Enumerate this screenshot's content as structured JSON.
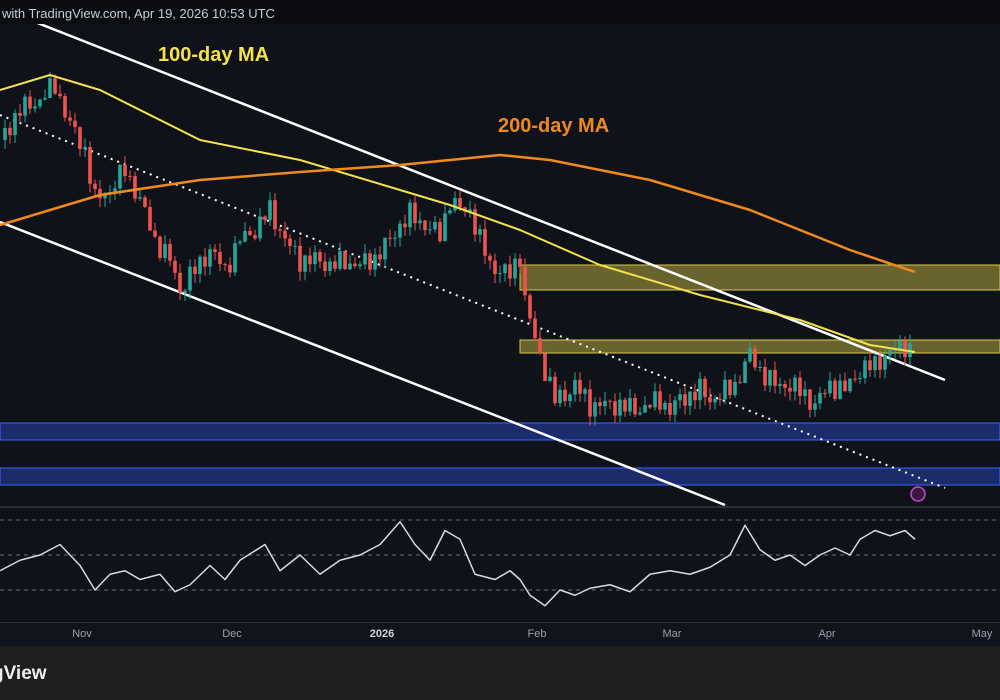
{
  "header": {
    "text": "with TradingView.com, Apr 19, 2026 10:53 UTC"
  },
  "footer": {
    "logo": "gView"
  },
  "chart_data": {
    "type": "candlestick",
    "x_unit": "days since chart start (mid-Oct 2025)",
    "price_unit": "relative",
    "x_ticks": [
      {
        "label": "Nov",
        "day": 16
      },
      {
        "label": "Dec",
        "day": 46
      },
      {
        "label": "2026",
        "day": 76,
        "bold": true
      },
      {
        "label": "Feb",
        "day": 107
      },
      {
        "label": "Mar",
        "day": 134
      },
      {
        "label": "Apr",
        "day": 165
      },
      {
        "label": "May",
        "day": 196
      }
    ],
    "price_path": [
      [
        0,
        76
      ],
      [
        4,
        82
      ],
      [
        8,
        84
      ],
      [
        11,
        87
      ],
      [
        14,
        79
      ],
      [
        17,
        74
      ],
      [
        19,
        64
      ],
      [
        22,
        66
      ],
      [
        25,
        70
      ],
      [
        28,
        64
      ],
      [
        31,
        56
      ],
      [
        34,
        52
      ],
      [
        36,
        46
      ],
      [
        39,
        50
      ],
      [
        42,
        54
      ],
      [
        45,
        50
      ],
      [
        48,
        56
      ],
      [
        51,
        58
      ],
      [
        54,
        62
      ],
      [
        57,
        56
      ],
      [
        60,
        52
      ],
      [
        63,
        52
      ],
      [
        66,
        51
      ],
      [
        69,
        51.6
      ],
      [
        72,
        51
      ],
      [
        75,
        52.4
      ],
      [
        78,
        56
      ],
      [
        80,
        59
      ],
      [
        82,
        61
      ],
      [
        85,
        59
      ],
      [
        88,
        57
      ],
      [
        90,
        64
      ],
      [
        92,
        62
      ],
      [
        94,
        62
      ],
      [
        96,
        56
      ],
      [
        98,
        51
      ],
      [
        100,
        50
      ],
      [
        102,
        49
      ],
      [
        104,
        53
      ],
      [
        105,
        44
      ],
      [
        107,
        36
      ],
      [
        109,
        30
      ],
      [
        111,
        24
      ],
      [
        113,
        25
      ],
      [
        115,
        27
      ],
      [
        118,
        23
      ],
      [
        121,
        23
      ],
      [
        124,
        23
      ],
      [
        127,
        22
      ],
      [
        130,
        23
      ],
      [
        132,
        24
      ],
      [
        134,
        22
      ],
      [
        136,
        24
      ],
      [
        138,
        25
      ],
      [
        140,
        26
      ],
      [
        142,
        24
      ],
      [
        144,
        25
      ],
      [
        147,
        27
      ],
      [
        149,
        31
      ],
      [
        150,
        33
      ],
      [
        152,
        30
      ],
      [
        155,
        27
      ],
      [
        158,
        27
      ],
      [
        161,
        25
      ],
      [
        163,
        23
      ],
      [
        166,
        27
      ],
      [
        169,
        26
      ],
      [
        172,
        30
      ],
      [
        175,
        31
      ],
      [
        177,
        33
      ],
      [
        179,
        34
      ],
      [
        181,
        35
      ],
      [
        182.4,
        34
      ]
    ],
    "ma100": {
      "label": "100-day MA",
      "color": "#f5e14a",
      "points": [
        [
          0,
          86
        ],
        [
          10,
          89
        ],
        [
          20,
          86
        ],
        [
          40,
          76
        ],
        [
          60,
          72
        ],
        [
          80,
          66
        ],
        [
          90,
          63
        ],
        [
          104,
          58
        ],
        [
          120,
          51
        ],
        [
          140,
          45
        ],
        [
          160,
          40
        ],
        [
          174,
          35
        ],
        [
          183,
          33.6
        ]
      ]
    },
    "ma200": {
      "label": "200-day MA",
      "color": "#f08a1c",
      "points": [
        [
          0,
          59
        ],
        [
          20,
          65
        ],
        [
          40,
          68
        ],
        [
          60,
          69.6
        ],
        [
          80,
          71
        ],
        [
          100,
          73
        ],
        [
          110,
          72
        ],
        [
          130,
          68
        ],
        [
          150,
          62
        ],
        [
          170,
          54
        ],
        [
          183,
          49.6
        ]
      ]
    },
    "rsi": {
      "levels": [
        70,
        50,
        30
      ],
      "points": [
        [
          0,
          41
        ],
        [
          4,
          47
        ],
        [
          8,
          50
        ],
        [
          12,
          56
        ],
        [
          16,
          44
        ],
        [
          19,
          30
        ],
        [
          22,
          39
        ],
        [
          25,
          41
        ],
        [
          28,
          36
        ],
        [
          32,
          39
        ],
        [
          35,
          29
        ],
        [
          38,
          33
        ],
        [
          42,
          44
        ],
        [
          45,
          36
        ],
        [
          48,
          47
        ],
        [
          53,
          56
        ],
        [
          56,
          41
        ],
        [
          60,
          50
        ],
        [
          64,
          39
        ],
        [
          68,
          47
        ],
        [
          72,
          50
        ],
        [
          76,
          56
        ],
        [
          80,
          69
        ],
        [
          83,
          56
        ],
        [
          86,
          47
        ],
        [
          89,
          64
        ],
        [
          92,
          59
        ],
        [
          95,
          39
        ],
        [
          99,
          36
        ],
        [
          102,
          41
        ],
        [
          104,
          36
        ],
        [
          106,
          27
        ],
        [
          109,
          21
        ],
        [
          112,
          30
        ],
        [
          115,
          27
        ],
        [
          118,
          31
        ],
        [
          122,
          33
        ],
        [
          126,
          29
        ],
        [
          130,
          39
        ],
        [
          134,
          41
        ],
        [
          138,
          39
        ],
        [
          142,
          43
        ],
        [
          146,
          50
        ],
        [
          149,
          67
        ],
        [
          152,
          53
        ],
        [
          155,
          47
        ],
        [
          158,
          50
        ],
        [
          161,
          44
        ],
        [
          164,
          50
        ],
        [
          167,
          54
        ],
        [
          170,
          50
        ],
        [
          172,
          59
        ],
        [
          175,
          64
        ],
        [
          178,
          61
        ],
        [
          181,
          64
        ],
        [
          183,
          59
        ]
      ]
    },
    "colors": {
      "up": "#26a69a",
      "down": "#ef5350",
      "supply_zone": "#d6c84a",
      "demand_zone": "#2a4bd0"
    }
  }
}
